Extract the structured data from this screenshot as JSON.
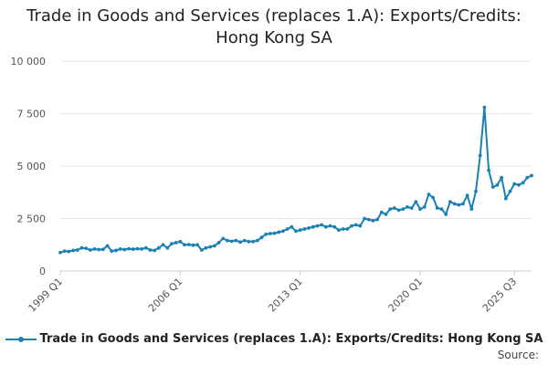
{
  "chart_data": {
    "type": "line",
    "title_line1": "Trade in Goods and Services (replaces 1.A): Exports/Credits:",
    "title_line2": "Hong Kong SA",
    "xlabel": "",
    "ylabel": "",
    "ylim": [
      0,
      10000
    ],
    "yticks": [
      0,
      2500,
      5000,
      7500,
      10000
    ],
    "ytick_labels": [
      "0",
      "2 500",
      "5 000",
      "7 500",
      "10 000"
    ],
    "xtick_labels": [
      "1999 Q1",
      "2006 Q1",
      "2013 Q1",
      "2020 Q1",
      "2025 Q3"
    ],
    "xtick_index": [
      0,
      28,
      56,
      84,
      106
    ],
    "grid": true,
    "legend_position": "bottom",
    "series": [
      {
        "name": "Trade in Goods and Services (replaces 1.A): Exports/Credits: Hong Kong SA",
        "color": "#1a81b5",
        "values": [
          880,
          950,
          930,
          980,
          1000,
          1100,
          1080,
          1000,
          1050,
          1020,
          1030,
          1200,
          950,
          980,
          1050,
          1020,
          1060,
          1040,
          1060,
          1050,
          1100,
          1000,
          980,
          1100,
          1250,
          1100,
          1300,
          1350,
          1400,
          1250,
          1260,
          1230,
          1250,
          1000,
          1100,
          1150,
          1200,
          1350,
          1550,
          1450,
          1420,
          1450,
          1380,
          1450,
          1400,
          1400,
          1450,
          1600,
          1750,
          1780,
          1800,
          1850,
          1900,
          2000,
          2100,
          1900,
          1950,
          2000,
          2050,
          2100,
          2150,
          2200,
          2100,
          2150,
          2100,
          1950,
          2000,
          2000,
          2150,
          2200,
          2150,
          2500,
          2450,
          2400,
          2450,
          2800,
          2700,
          2950,
          3000,
          2900,
          2950,
          3050,
          3000,
          3300,
          2950,
          3050,
          3650,
          3500,
          3000,
          2950,
          2700,
          3300,
          3200,
          3150,
          3200,
          3600,
          2950,
          3800,
          5500,
          7800,
          4800,
          4000,
          4100,
          4450,
          3450,
          3800,
          4150,
          4100,
          4200,
          4450,
          4550
        ]
      }
    ]
  },
  "footer": {
    "source_label": "Source:"
  }
}
